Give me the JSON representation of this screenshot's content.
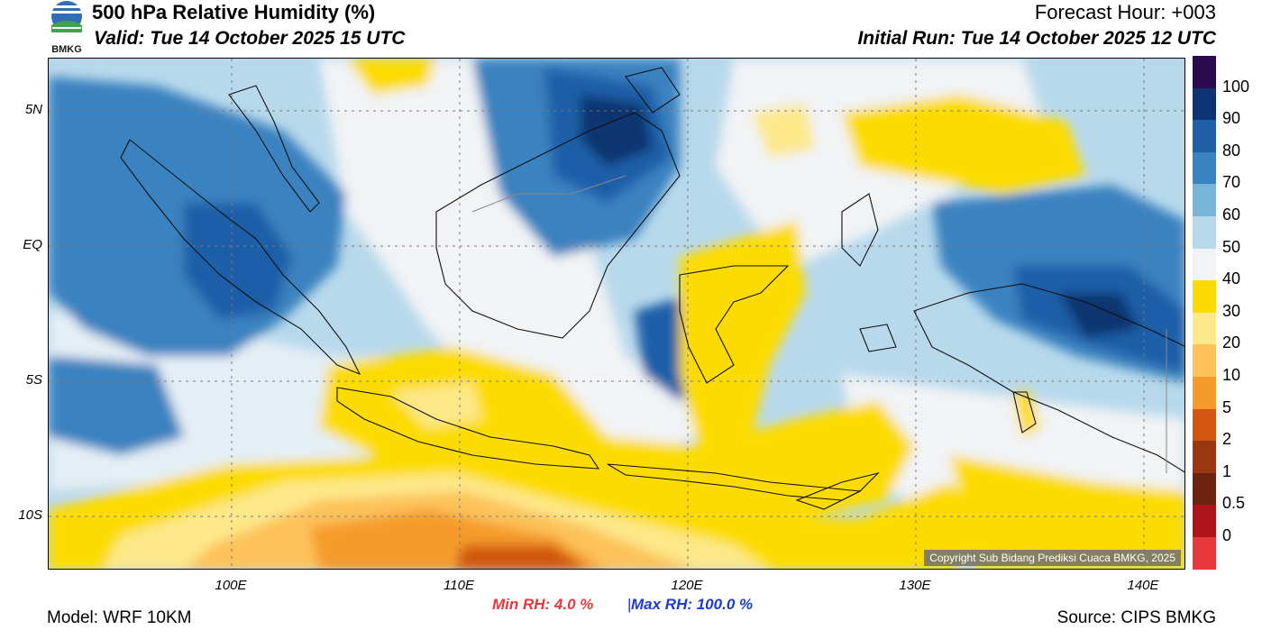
{
  "header": {
    "title": "500 hPa Relative Humidity (%)",
    "valid": "Valid: Tue 14 October 2025 15 UTC",
    "forecast_hour": "Forecast Hour: +003",
    "initial_run": "Initial Run: Tue 14 October 2025 12 UTC",
    "logo_text": "BMKG"
  },
  "map": {
    "latitudes": [
      "5N",
      "EQ",
      "5S",
      "10S"
    ],
    "longitudes": [
      "100E",
      "110E",
      "120E",
      "130E",
      "140E"
    ],
    "copyright": "Copyright Sub Bidang Prediksi Cuaca BMKG, 2025"
  },
  "legend": {
    "labels": [
      "100",
      "90",
      "80",
      "70",
      "60",
      "50",
      "40",
      "30",
      "20",
      "10",
      "5",
      "2",
      "1",
      "0.5",
      "0"
    ],
    "colors": [
      "#2b0a4d",
      "#0d3470",
      "#1f5fa8",
      "#3b82c0",
      "#78b3d8",
      "#b8d9ec",
      "#f1f3f5",
      "#fcdc00",
      "#fde88a",
      "#fdc25a",
      "#f59b2b",
      "#d2560f",
      "#9a3610",
      "#6a230e",
      "#b0141b",
      "#e8383b"
    ]
  },
  "footer": {
    "model": "Model: WRF 10KM",
    "min_rh": "Min RH:   4.0 %",
    "separator": "|",
    "max_rh": "Max RH: 100.0 %",
    "source": "Source: CIPS BMKG"
  }
}
